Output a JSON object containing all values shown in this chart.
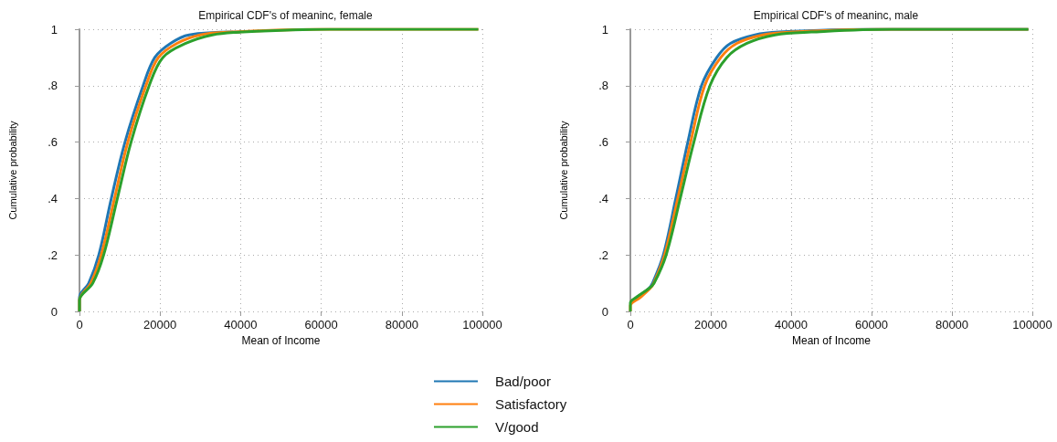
{
  "chart_data": [
    {
      "type": "line",
      "title": "Empirical CDF's of meaninc, female",
      "xlabel": "Mean of Income",
      "ylabel": "Cumulative probability",
      "xlim": [
        0,
        100000
      ],
      "xticks": [
        0,
        20000,
        40000,
        60000,
        80000,
        100000
      ],
      "ylim": [
        0,
        1
      ],
      "yticks": [
        {
          "value": 0,
          "label": "0"
        },
        {
          "value": 0.2,
          "label": ".2"
        },
        {
          "value": 0.4,
          "label": ".4"
        },
        {
          "value": 0.6,
          "label": ".6"
        },
        {
          "value": 0.8,
          "label": ".8"
        },
        {
          "value": 1,
          "label": "1"
        }
      ],
      "grid": true,
      "legend": "bottom",
      "marker": "none",
      "line_style": "solid",
      "series": [
        {
          "name": "Bad/poor",
          "color": "#1f77b4",
          "x": [
            0,
            0,
            2300,
            4800,
            7900,
            11300,
            15800,
            18700,
            22600,
            27200,
            40000
          ],
          "values": [
            0,
            0.05,
            0.1,
            0.2,
            0.4,
            0.6,
            0.8,
            0.9,
            0.95,
            0.98,
            0.99
          ]
        },
        {
          "name": "Satisfactory",
          "color": "#ff7f0e",
          "x": [
            0,
            0,
            2800,
            5400,
            8700,
            12000,
            16500,
            19600,
            24200,
            30000,
            38000,
            60000,
            99000
          ],
          "values": [
            0,
            0.04,
            0.1,
            0.2,
            0.4,
            0.6,
            0.8,
            0.9,
            0.95,
            0.98,
            0.99,
            1,
            1
          ]
        },
        {
          "name": "V/good",
          "color": "#2ca02c",
          "x": [
            0,
            0,
            3300,
            6000,
            9400,
            12800,
            17300,
            20700,
            26400,
            33000,
            40000,
            62000,
            99000
          ],
          "values": [
            0,
            0.04,
            0.1,
            0.2,
            0.4,
            0.6,
            0.8,
            0.9,
            0.95,
            0.98,
            0.99,
            1,
            1
          ]
        }
      ]
    },
    {
      "type": "line",
      "title": "Empirical CDF's of meaninc, male",
      "xlabel": "Mean of Income",
      "ylabel": "Cumulative probability",
      "xlim": [
        0,
        100000
      ],
      "xticks": [
        0,
        20000,
        40000,
        60000,
        80000,
        100000
      ],
      "ylim": [
        0,
        1
      ],
      "yticks": [
        {
          "value": 0,
          "label": "0"
        },
        {
          "value": 0.2,
          "label": ".2"
        },
        {
          "value": 0.4,
          "label": ".4"
        },
        {
          "value": 0.6,
          "label": ".6"
        },
        {
          "value": 0.8,
          "label": ".8"
        },
        {
          "value": 1,
          "label": "1"
        }
      ],
      "grid": true,
      "marker": "none",
      "line_style": "solid",
      "series": [
        {
          "color": "#1f77b4",
          "x": [
            1500,
            4500,
            5500,
            8200,
            11300,
            14300,
            17700,
            21500,
            24900,
            31000,
            37000,
            60000,
            99000
          ],
          "values": [
            0.05,
            0.08,
            0.1,
            0.2,
            0.4,
            0.6,
            0.8,
            0.9,
            0.95,
            0.98,
            0.99,
            1,
            1
          ]
        },
        {
          "color": "#ff7f0e",
          "x": [
            0,
            0,
            2500,
            4800,
            5800,
            8500,
            11800,
            15000,
            18500,
            22500,
            26500,
            33000,
            40000,
            62000,
            99000
          ],
          "values": [
            0,
            0.02,
            0.05,
            0.08,
            0.1,
            0.2,
            0.4,
            0.6,
            0.8,
            0.9,
            0.95,
            0.98,
            0.99,
            1,
            1
          ]
        },
        {
          "color": "#2ca02c",
          "x": [
            0,
            0,
            1500,
            4500,
            5900,
            8900,
            12400,
            15800,
            19800,
            24000,
            29000,
            36000,
            45000,
            65000,
            99000
          ],
          "values": [
            0,
            0.03,
            0.05,
            0.08,
            0.1,
            0.2,
            0.4,
            0.6,
            0.8,
            0.9,
            0.95,
            0.98,
            0.99,
            1,
            1
          ]
        }
      ]
    }
  ]
}
